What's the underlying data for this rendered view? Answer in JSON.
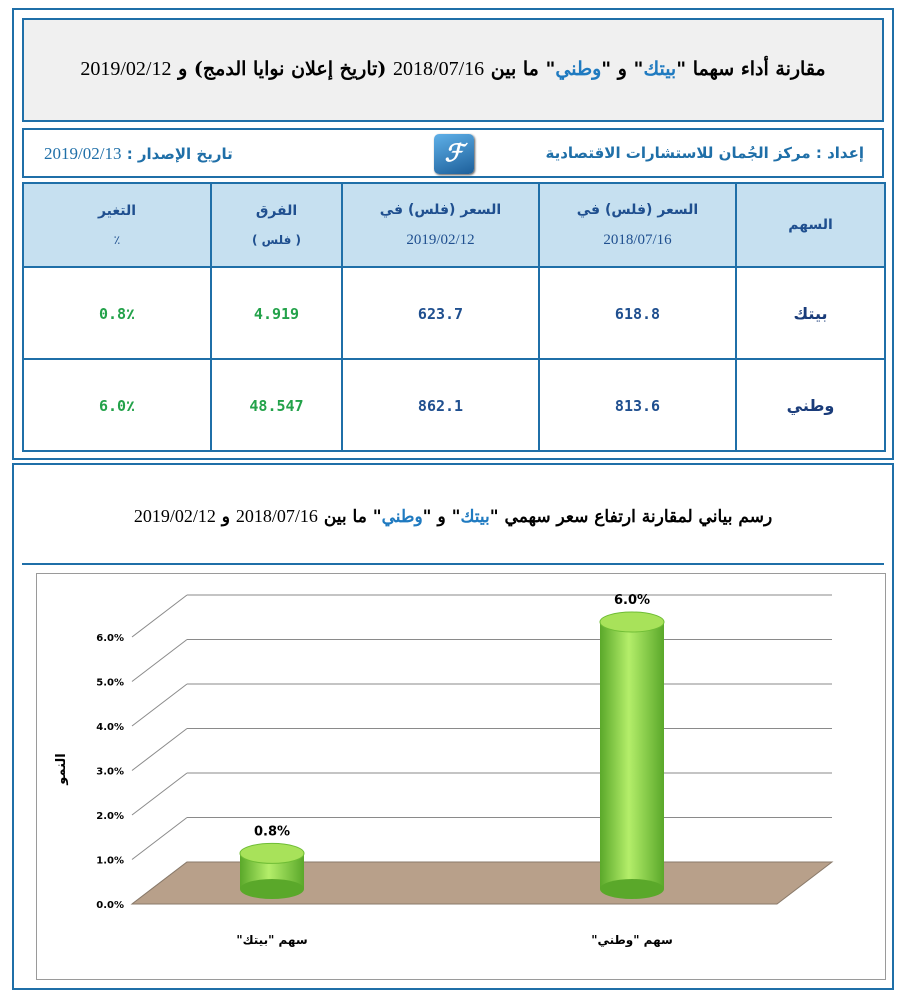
{
  "header": {
    "title_part1": "مقارنة أداء سهما \"",
    "stock1": "بيتك",
    "title_part2": "\" و \"",
    "stock2": "وطني",
    "title_part3": "\" ما بين",
    "date_from": "2018/07/16",
    "title_part4": "(تاريخ إعلان نوايا الدمج) و",
    "date_to": "2019/02/12"
  },
  "info": {
    "prepared_label": "إعداد :",
    "prepared_by": "مركز الجُمان للاستشارات الاقتصادية",
    "issue_label": "تاريخ الإصدار :",
    "issue_date": "2019/02/13",
    "logo_glyph": "ℱ"
  },
  "table": {
    "headers": {
      "stock": "السهم",
      "price1_line1": "السعر (فلس) في",
      "price1_line2": "2018/07/16",
      "price2_line1": "السعر (فلس) في",
      "price2_line2": "2019/02/12",
      "diff_line1": "الفرق",
      "diff_line2": "( فلس )",
      "change_line1": "التغير",
      "change_line2": "٪"
    },
    "rows": [
      {
        "stock": "بيتك",
        "price1": "618.8",
        "price2": "623.7",
        "diff": "4.919",
        "change": "0.8٪"
      },
      {
        "stock": "وطني",
        "price1": "813.6",
        "price2": "862.1",
        "diff": "48.547",
        "change": "6.0٪"
      }
    ]
  },
  "chart_section": {
    "title_part1": "رسم بياني لمقارنة ارتفاع سعر سهمي \"",
    "stock1": "بيتك",
    "title_part2": "\" و \"",
    "stock2": "وطني",
    "title_part3": "\" ما بين",
    "date_from": "2018/07/16",
    "title_part4": "و",
    "date_to": "2019/02/12"
  },
  "chart_data": {
    "type": "bar",
    "categories": [
      "سهم \"بيتك\"",
      "سهم \"وطني\""
    ],
    "values": [
      0.8,
      6.0
    ],
    "data_labels": [
      "0.8%",
      "6.0%"
    ],
    "ylabel": "النمو",
    "ylim": [
      0,
      6.0
    ],
    "yticks": [
      "0.0%",
      "1.0%",
      "2.0%",
      "3.0%",
      "4.0%",
      "5.0%",
      "6.0%"
    ],
    "grid": true,
    "bar_color": "#8cd43a",
    "floor_color": "#b8a08a"
  }
}
